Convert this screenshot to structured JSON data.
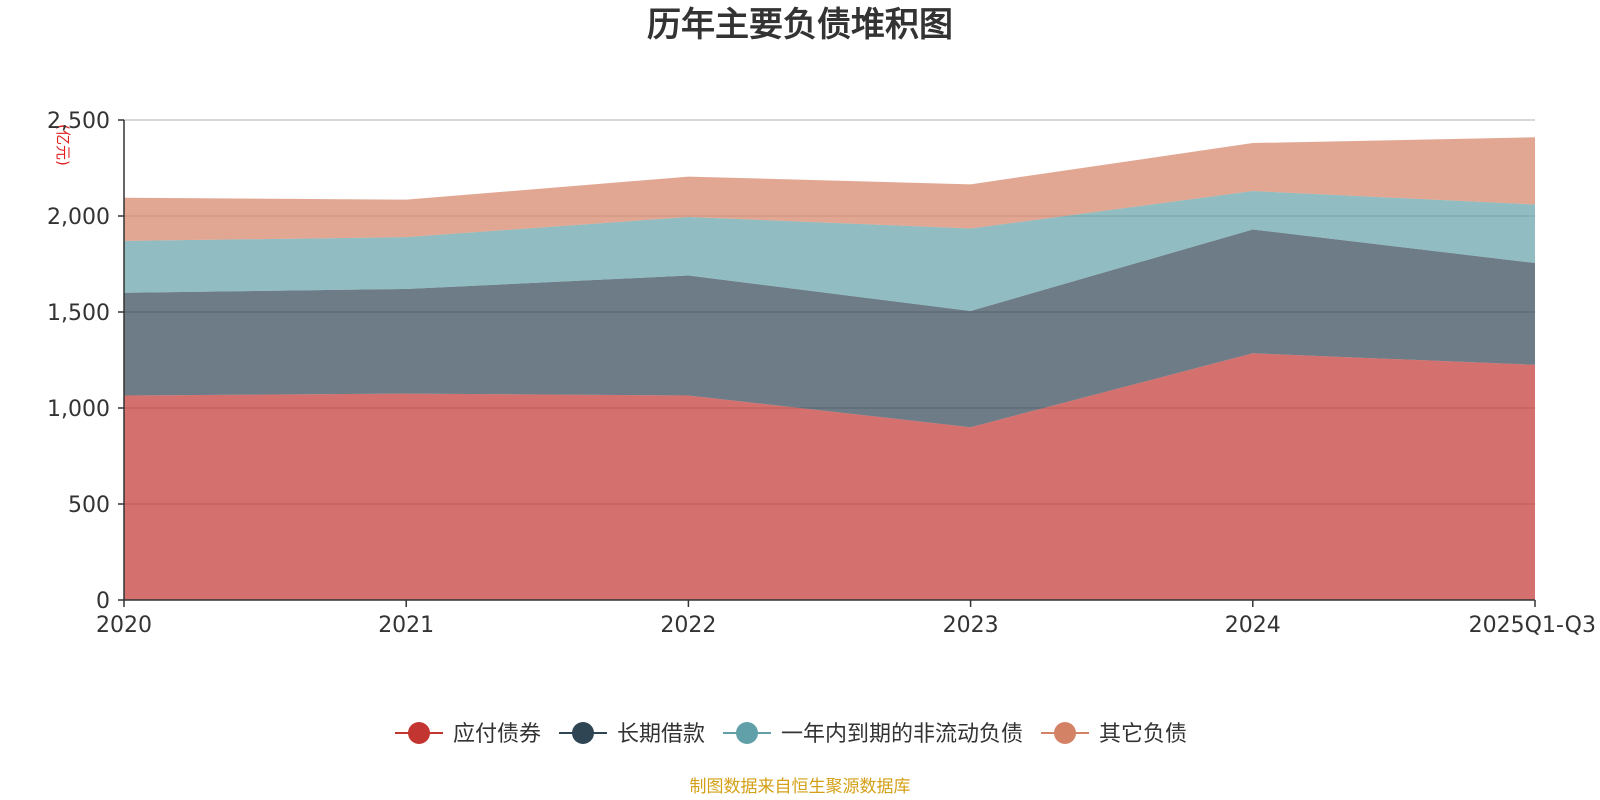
{
  "chart_data": {
    "type": "area",
    "stacked": true,
    "title": "历年主要负债堆积图",
    "ylabel": "(亿元)",
    "xlabel": "",
    "categories": [
      "2020",
      "2021",
      "2022",
      "2023",
      "2024",
      "2025Q1-Q3"
    ],
    "ylim": [
      0,
      2500
    ],
    "yticks": [
      0,
      500,
      1000,
      1500,
      2000,
      2500
    ],
    "ytick_labels": [
      "0",
      "500",
      "1,000",
      "1,500",
      "2,000",
      "2,500"
    ],
    "grid": true,
    "legend_position": "bottom-center",
    "series": [
      {
        "name": "应付债券",
        "color": "#c23531",
        "values": [
          1065,
          1075,
          1065,
          900,
          1285,
          1225
        ]
      },
      {
        "name": "长期借款",
        "color": "#2f4554",
        "values": [
          535,
          545,
          625,
          605,
          645,
          530
        ]
      },
      {
        "name": "一年内到期的非流动负债",
        "color": "#61a0a8",
        "values": [
          270,
          270,
          305,
          430,
          200,
          305
        ]
      },
      {
        "name": "其它负债",
        "color": "#d48265",
        "values": [
          225,
          195,
          210,
          230,
          250,
          350
        ]
      }
    ],
    "source_note": "制图数据来自恒生聚源数据库"
  }
}
